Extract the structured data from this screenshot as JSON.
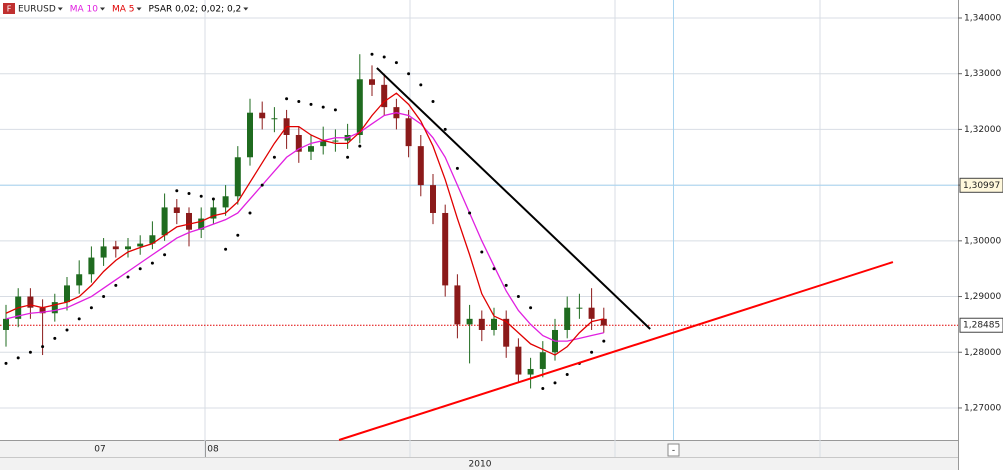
{
  "chart_data": {
    "type": "candlestick",
    "symbol": "EURUSD",
    "ylim": [
      1.26425,
      1.34323
    ],
    "yticks": [
      {
        "value": 1.27,
        "label": "1,27000"
      },
      {
        "value": 1.28,
        "label": "1,28000"
      },
      {
        "value": 1.29,
        "label": "1,29000"
      },
      {
        "value": 1.3,
        "label": "1,30000"
      },
      {
        "value": 1.31,
        "label": "1,31000"
      },
      {
        "value": 1.32,
        "label": "1,32000"
      },
      {
        "value": 1.33,
        "label": "1,33000"
      },
      {
        "value": 1.34,
        "label": "1,34000"
      }
    ],
    "grid": true,
    "candles": {
      "up_color": "#1f6b1f",
      "down_color": "#8b1a1a",
      "open": [
        1.284,
        1.286,
        1.29,
        1.288,
        1.287,
        1.289,
        1.292,
        1.294,
        1.297,
        1.299,
        1.2985,
        1.299,
        1.2995,
        1.301,
        1.306,
        1.305,
        1.302,
        1.304,
        1.306,
        1.308,
        1.315,
        1.323,
        1.322,
        1.322,
        1.319,
        1.316,
        1.317,
        1.318,
        1.318,
        1.319,
        1.329,
        1.328,
        1.324,
        1.322,
        1.317,
        1.31,
        1.305,
        1.292,
        1.285,
        1.286,
        1.284,
        1.286,
        1.281,
        1.276,
        1.277,
        1.28,
        1.284,
        1.288,
        1.288,
        1.286
      ],
      "high": [
        1.2885,
        1.2915,
        1.2915,
        1.2895,
        1.2905,
        1.2935,
        1.2965,
        1.299,
        1.3005,
        1.3,
        1.3005,
        1.301,
        1.3035,
        1.3085,
        1.3075,
        1.306,
        1.306,
        1.3075,
        1.31,
        1.317,
        1.3255,
        1.325,
        1.324,
        1.3235,
        1.3205,
        1.319,
        1.3205,
        1.32,
        1.321,
        1.3335,
        1.3315,
        1.33,
        1.3255,
        1.3235,
        1.319,
        1.312,
        1.3065,
        1.294,
        1.2885,
        1.2875,
        1.288,
        1.2875,
        1.2825,
        1.279,
        1.282,
        1.286,
        1.29,
        1.2905,
        1.2915,
        1.288
      ],
      "low": [
        1.281,
        1.2845,
        1.286,
        1.2795,
        1.2855,
        1.2875,
        1.2905,
        1.2925,
        1.2955,
        1.297,
        1.297,
        1.2975,
        1.2985,
        1.3,
        1.303,
        1.299,
        1.3005,
        1.303,
        1.3045,
        1.3065,
        1.3135,
        1.32,
        1.3195,
        1.3165,
        1.314,
        1.3145,
        1.3155,
        1.316,
        1.3165,
        1.3175,
        1.326,
        1.3225,
        1.32,
        1.315,
        1.308,
        1.303,
        1.29,
        1.2825,
        1.278,
        1.282,
        1.283,
        1.279,
        1.2745,
        1.2735,
        1.2755,
        1.2785,
        1.2825,
        1.286,
        1.284,
        1.2835
      ],
      "close": [
        1.286,
        1.29,
        1.288,
        1.287,
        1.289,
        1.292,
        1.294,
        1.297,
        1.299,
        1.2985,
        1.299,
        1.2995,
        1.301,
        1.306,
        1.305,
        1.302,
        1.304,
        1.306,
        1.308,
        1.315,
        1.323,
        1.322,
        1.322,
        1.319,
        1.316,
        1.317,
        1.318,
        1.318,
        1.319,
        1.329,
        1.328,
        1.324,
        1.322,
        1.317,
        1.31,
        1.305,
        1.292,
        1.285,
        1.286,
        1.284,
        1.286,
        1.281,
        1.276,
        1.277,
        1.28,
        1.284,
        1.288,
        1.288,
        1.286,
        1.2848
      ]
    },
    "series": [
      {
        "name": "MA 10",
        "color": "#e020e0",
        "values": [
          1.286,
          1.2865,
          1.287,
          1.2872,
          1.2875,
          1.288,
          1.289,
          1.29,
          1.2915,
          1.293,
          1.2945,
          1.296,
          1.2975,
          1.299,
          1.3005,
          1.3015,
          1.3022,
          1.303,
          1.3038,
          1.305,
          1.3075,
          1.31,
          1.3125,
          1.315,
          1.3165,
          1.3175,
          1.318,
          1.3185,
          1.3185,
          1.3195,
          1.321,
          1.3225,
          1.323,
          1.3225,
          1.321,
          1.3185,
          1.315,
          1.31,
          1.305,
          1.3,
          1.2955,
          1.291,
          1.2875,
          1.285,
          1.283,
          1.282,
          1.282,
          1.2825,
          1.283,
          1.2835
        ]
      },
      {
        "name": "MA 5",
        "color": "#e00000",
        "values": [
          1.287,
          1.288,
          1.2885,
          1.288,
          1.2885,
          1.289,
          1.29,
          1.292,
          1.2945,
          1.2965,
          1.298,
          1.2988,
          1.2995,
          1.301,
          1.3025,
          1.303,
          1.3035,
          1.3045,
          1.305,
          1.307,
          1.3105,
          1.314,
          1.3175,
          1.3205,
          1.3205,
          1.319,
          1.318,
          1.3175,
          1.3175,
          1.3195,
          1.3225,
          1.325,
          1.3265,
          1.3245,
          1.3215,
          1.317,
          1.311,
          1.304,
          1.2975,
          1.2905,
          1.2865,
          1.2855,
          1.2835,
          1.2815,
          1.2805,
          1.2795,
          1.281,
          1.2835,
          1.2855,
          1.286
        ]
      }
    ],
    "psar": {
      "name": "PSAR 0,02; 0,02; 0,2",
      "color": "#000000",
      "values": [
        1.278,
        1.279,
        1.28,
        1.281,
        1.2825,
        1.284,
        1.286,
        1.288,
        1.29,
        1.292,
        1.2935,
        1.295,
        1.296,
        1.2975,
        1.309,
        1.3085,
        1.308,
        1.3075,
        1.2985,
        1.301,
        1.305,
        1.31,
        1.315,
        1.3255,
        1.325,
        1.3245,
        1.324,
        1.3235,
        1.315,
        1.317,
        1.3335,
        1.333,
        1.332,
        1.33,
        1.328,
        1.325,
        1.32,
        1.313,
        1.305,
        1.298,
        1.295,
        1.292,
        1.29,
        1.288,
        1.2735,
        1.2745,
        1.276,
        1.278,
        1.28,
        1.282
      ]
    },
    "trendlines": [
      {
        "color": "#000000",
        "points": [
          [
            30.4,
            1.33102
          ],
          [
            52.8,
            1.28417
          ]
        ]
      },
      {
        "color": "#ff0000",
        "points": [
          [
            27.3,
            1.26425
          ],
          [
            72.7,
            1.29619
          ]
        ]
      }
    ],
    "hlines": [
      {
        "value": 1.28485,
        "label": "1,28485",
        "color": "#e00000",
        "dotted": true
      },
      {
        "value": 1.30997,
        "label": "1,30997",
        "color": "#a8d4f0",
        "dotted": false
      }
    ],
    "time_labels": [
      "07",
      "08"
    ],
    "period_label": "2010",
    "cursor_label": "-"
  }
}
